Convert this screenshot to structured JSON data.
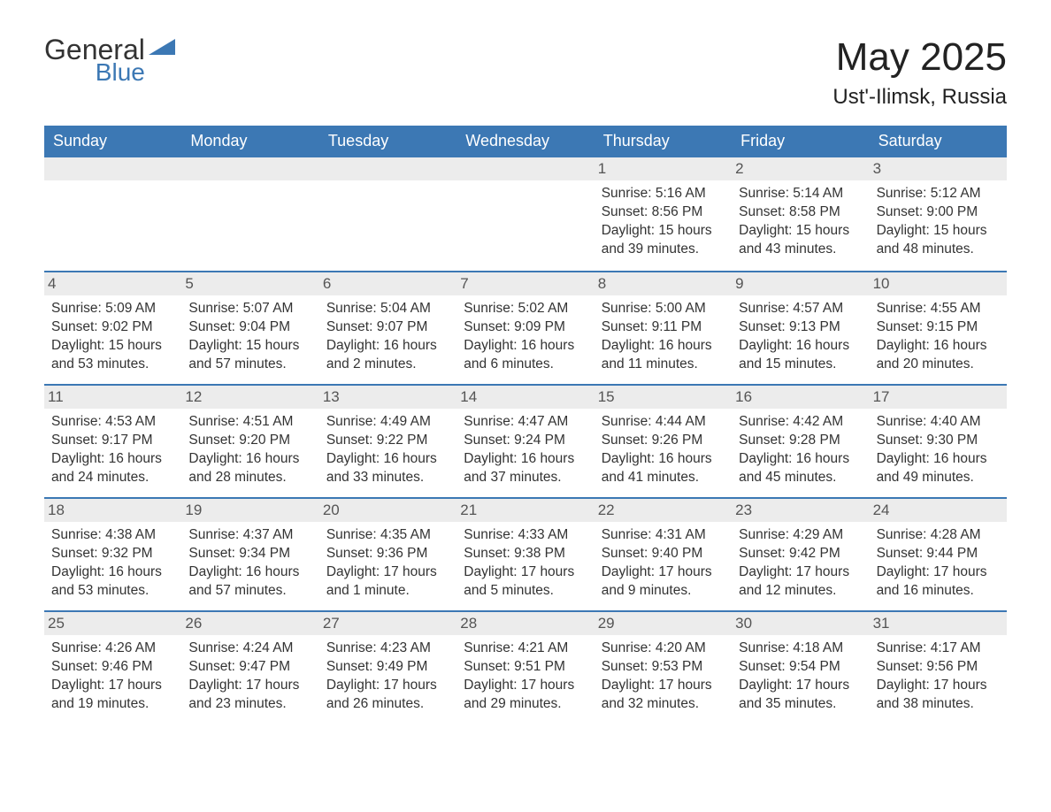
{
  "logo": {
    "general": "General",
    "blue": "Blue"
  },
  "title": "May 2025",
  "location": "Ust'-Ilimsk, Russia",
  "colors": {
    "brand_blue": "#3c78b4",
    "header_bg": "#3c78b4",
    "header_text": "#ffffff",
    "daynum_bg": "#ececec",
    "daynum_text": "#555555",
    "body_text": "#333333",
    "divider": "#3c78b4",
    "page_bg": "#ffffff"
  },
  "day_names": [
    "Sunday",
    "Monday",
    "Tuesday",
    "Wednesday",
    "Thursday",
    "Friday",
    "Saturday"
  ],
  "weeks": [
    [
      {
        "blank": true
      },
      {
        "blank": true
      },
      {
        "blank": true
      },
      {
        "blank": true
      },
      {
        "day": 1,
        "sunrise": "5:16 AM",
        "sunset": "8:56 PM",
        "daylight": "15 hours and 39 minutes."
      },
      {
        "day": 2,
        "sunrise": "5:14 AM",
        "sunset": "8:58 PM",
        "daylight": "15 hours and 43 minutes."
      },
      {
        "day": 3,
        "sunrise": "5:12 AM",
        "sunset": "9:00 PM",
        "daylight": "15 hours and 48 minutes."
      }
    ],
    [
      {
        "day": 4,
        "sunrise": "5:09 AM",
        "sunset": "9:02 PM",
        "daylight": "15 hours and 53 minutes."
      },
      {
        "day": 5,
        "sunrise": "5:07 AM",
        "sunset": "9:04 PM",
        "daylight": "15 hours and 57 minutes."
      },
      {
        "day": 6,
        "sunrise": "5:04 AM",
        "sunset": "9:07 PM",
        "daylight": "16 hours and 2 minutes."
      },
      {
        "day": 7,
        "sunrise": "5:02 AM",
        "sunset": "9:09 PM",
        "daylight": "16 hours and 6 minutes."
      },
      {
        "day": 8,
        "sunrise": "5:00 AM",
        "sunset": "9:11 PM",
        "daylight": "16 hours and 11 minutes."
      },
      {
        "day": 9,
        "sunrise": "4:57 AM",
        "sunset": "9:13 PM",
        "daylight": "16 hours and 15 minutes."
      },
      {
        "day": 10,
        "sunrise": "4:55 AM",
        "sunset": "9:15 PM",
        "daylight": "16 hours and 20 minutes."
      }
    ],
    [
      {
        "day": 11,
        "sunrise": "4:53 AM",
        "sunset": "9:17 PM",
        "daylight": "16 hours and 24 minutes."
      },
      {
        "day": 12,
        "sunrise": "4:51 AM",
        "sunset": "9:20 PM",
        "daylight": "16 hours and 28 minutes."
      },
      {
        "day": 13,
        "sunrise": "4:49 AM",
        "sunset": "9:22 PM",
        "daylight": "16 hours and 33 minutes."
      },
      {
        "day": 14,
        "sunrise": "4:47 AM",
        "sunset": "9:24 PM",
        "daylight": "16 hours and 37 minutes."
      },
      {
        "day": 15,
        "sunrise": "4:44 AM",
        "sunset": "9:26 PM",
        "daylight": "16 hours and 41 minutes."
      },
      {
        "day": 16,
        "sunrise": "4:42 AM",
        "sunset": "9:28 PM",
        "daylight": "16 hours and 45 minutes."
      },
      {
        "day": 17,
        "sunrise": "4:40 AM",
        "sunset": "9:30 PM",
        "daylight": "16 hours and 49 minutes."
      }
    ],
    [
      {
        "day": 18,
        "sunrise": "4:38 AM",
        "sunset": "9:32 PM",
        "daylight": "16 hours and 53 minutes."
      },
      {
        "day": 19,
        "sunrise": "4:37 AM",
        "sunset": "9:34 PM",
        "daylight": "16 hours and 57 minutes."
      },
      {
        "day": 20,
        "sunrise": "4:35 AM",
        "sunset": "9:36 PM",
        "daylight": "17 hours and 1 minute."
      },
      {
        "day": 21,
        "sunrise": "4:33 AM",
        "sunset": "9:38 PM",
        "daylight": "17 hours and 5 minutes."
      },
      {
        "day": 22,
        "sunrise": "4:31 AM",
        "sunset": "9:40 PM",
        "daylight": "17 hours and 9 minutes."
      },
      {
        "day": 23,
        "sunrise": "4:29 AM",
        "sunset": "9:42 PM",
        "daylight": "17 hours and 12 minutes."
      },
      {
        "day": 24,
        "sunrise": "4:28 AM",
        "sunset": "9:44 PM",
        "daylight": "17 hours and 16 minutes."
      }
    ],
    [
      {
        "day": 25,
        "sunrise": "4:26 AM",
        "sunset": "9:46 PM",
        "daylight": "17 hours and 19 minutes."
      },
      {
        "day": 26,
        "sunrise": "4:24 AM",
        "sunset": "9:47 PM",
        "daylight": "17 hours and 23 minutes."
      },
      {
        "day": 27,
        "sunrise": "4:23 AM",
        "sunset": "9:49 PM",
        "daylight": "17 hours and 26 minutes."
      },
      {
        "day": 28,
        "sunrise": "4:21 AM",
        "sunset": "9:51 PM",
        "daylight": "17 hours and 29 minutes."
      },
      {
        "day": 29,
        "sunrise": "4:20 AM",
        "sunset": "9:53 PM",
        "daylight": "17 hours and 32 minutes."
      },
      {
        "day": 30,
        "sunrise": "4:18 AM",
        "sunset": "9:54 PM",
        "daylight": "17 hours and 35 minutes."
      },
      {
        "day": 31,
        "sunrise": "4:17 AM",
        "sunset": "9:56 PM",
        "daylight": "17 hours and 38 minutes."
      }
    ]
  ],
  "labels": {
    "sunrise": "Sunrise: ",
    "sunset": "Sunset: ",
    "daylight": "Daylight: "
  }
}
